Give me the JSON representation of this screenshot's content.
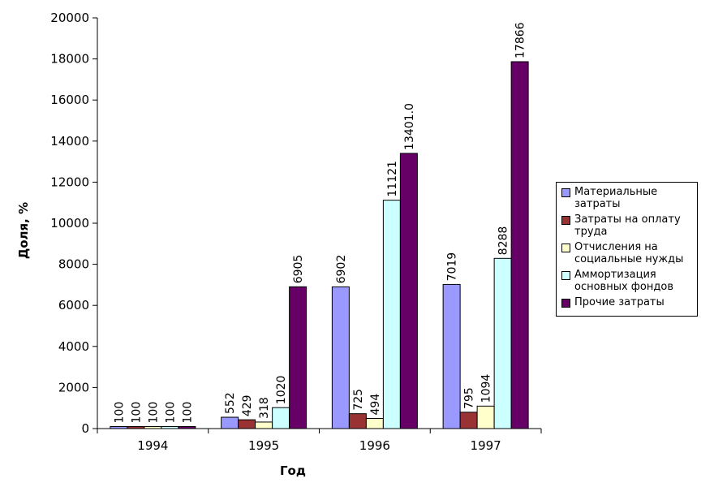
{
  "chart_data": {
    "type": "bar",
    "xlabel": "Год",
    "ylabel": "Доля, %",
    "ylim": [
      0,
      20000
    ],
    "yticks": [
      "0",
      "2000",
      "4000",
      "6000",
      "8000",
      "10000",
      "12000",
      "14000",
      "16000",
      "18000",
      "20000"
    ],
    "categories": [
      "1994",
      "1995",
      "1996",
      "1997"
    ],
    "grid": false,
    "legend_position": "right",
    "series": [
      {
        "name": "Материальные затраты",
        "color": "#9999ff",
        "values": [
          100,
          552,
          6902,
          7019
        ],
        "labels": [
          "100",
          "552",
          "6902",
          "7019"
        ]
      },
      {
        "name": "Затраты на оплату труда",
        "color": "#993333",
        "values": [
          100,
          429,
          725,
          795
        ],
        "labels": [
          "100",
          "429",
          "725",
          "795"
        ]
      },
      {
        "name": "Отчисления на социальные нужды",
        "color": "#ffffcc",
        "values": [
          100,
          318,
          494,
          1094
        ],
        "labels": [
          "100",
          "318",
          "494",
          "1094"
        ]
      },
      {
        "name": "Аммортизация основных фондов",
        "color": "#ccffff",
        "values": [
          100,
          1020,
          11121,
          8288
        ],
        "labels": [
          "100",
          "1020",
          "11121",
          "8288"
        ]
      },
      {
        "name": "Прочие затраты",
        "color": "#660066",
        "values": [
          100,
          6905,
          13401.0,
          17866
        ],
        "labels": [
          "100",
          "6905",
          "13401.0",
          "17866"
        ]
      }
    ]
  }
}
